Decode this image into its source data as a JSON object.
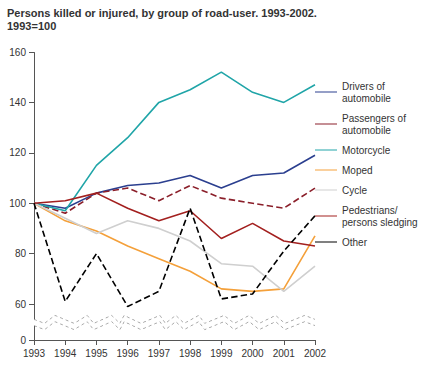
{
  "chart_data": {
    "type": "line",
    "title": "Persons killed or injured, by group of road-user. 1993-2002.",
    "subtitle": "1993=100",
    "categories": [
      "1993",
      "1994",
      "1995",
      "1996",
      "1997",
      "1998",
      "1999",
      "2000",
      "2001",
      "2002"
    ],
    "series": [
      {
        "name": "Drivers of automobile",
        "color": "#2b3f8f",
        "line_style": "solid",
        "values": [
          100,
          98,
          104,
          107,
          108,
          111,
          106,
          111,
          112,
          119
        ]
      },
      {
        "name": "Passengers of automobile",
        "color": "#8b1f2a",
        "line_style": "dashed",
        "values": [
          100,
          96,
          104,
          106,
          101,
          107,
          102,
          100,
          98,
          106
        ]
      },
      {
        "name": "Motorcycle",
        "color": "#20a5a8",
        "line_style": "solid",
        "values": [
          100,
          97,
          115,
          126,
          140,
          145,
          152,
          144,
          140,
          147
        ]
      },
      {
        "name": "Moped",
        "color": "#f4a03a",
        "line_style": "solid",
        "values": [
          100,
          93,
          89,
          83,
          78,
          73,
          66,
          65,
          66,
          87
        ]
      },
      {
        "name": "Cycle",
        "color": "#cfcfcf",
        "line_style": "solid",
        "values": [
          100,
          94,
          88,
          93,
          90,
          85,
          76,
          75,
          65,
          75
        ]
      },
      {
        "name": "Pedestrians/ persons sledging",
        "color": "#a3201f",
        "line_style": "solid",
        "values": [
          100,
          101,
          104,
          98,
          93,
          97,
          86,
          92,
          85,
          83
        ]
      },
      {
        "name": "Other",
        "color": "#000000",
        "line_style": "dashed",
        "values": [
          100,
          61,
          80,
          59,
          65,
          98,
          62,
          64,
          81,
          95
        ]
      }
    ],
    "ylim": [
      0,
      160
    ],
    "yticks": [
      0,
      60,
      80,
      100,
      120,
      140,
      160
    ],
    "grid": false,
    "legend": "right"
  }
}
